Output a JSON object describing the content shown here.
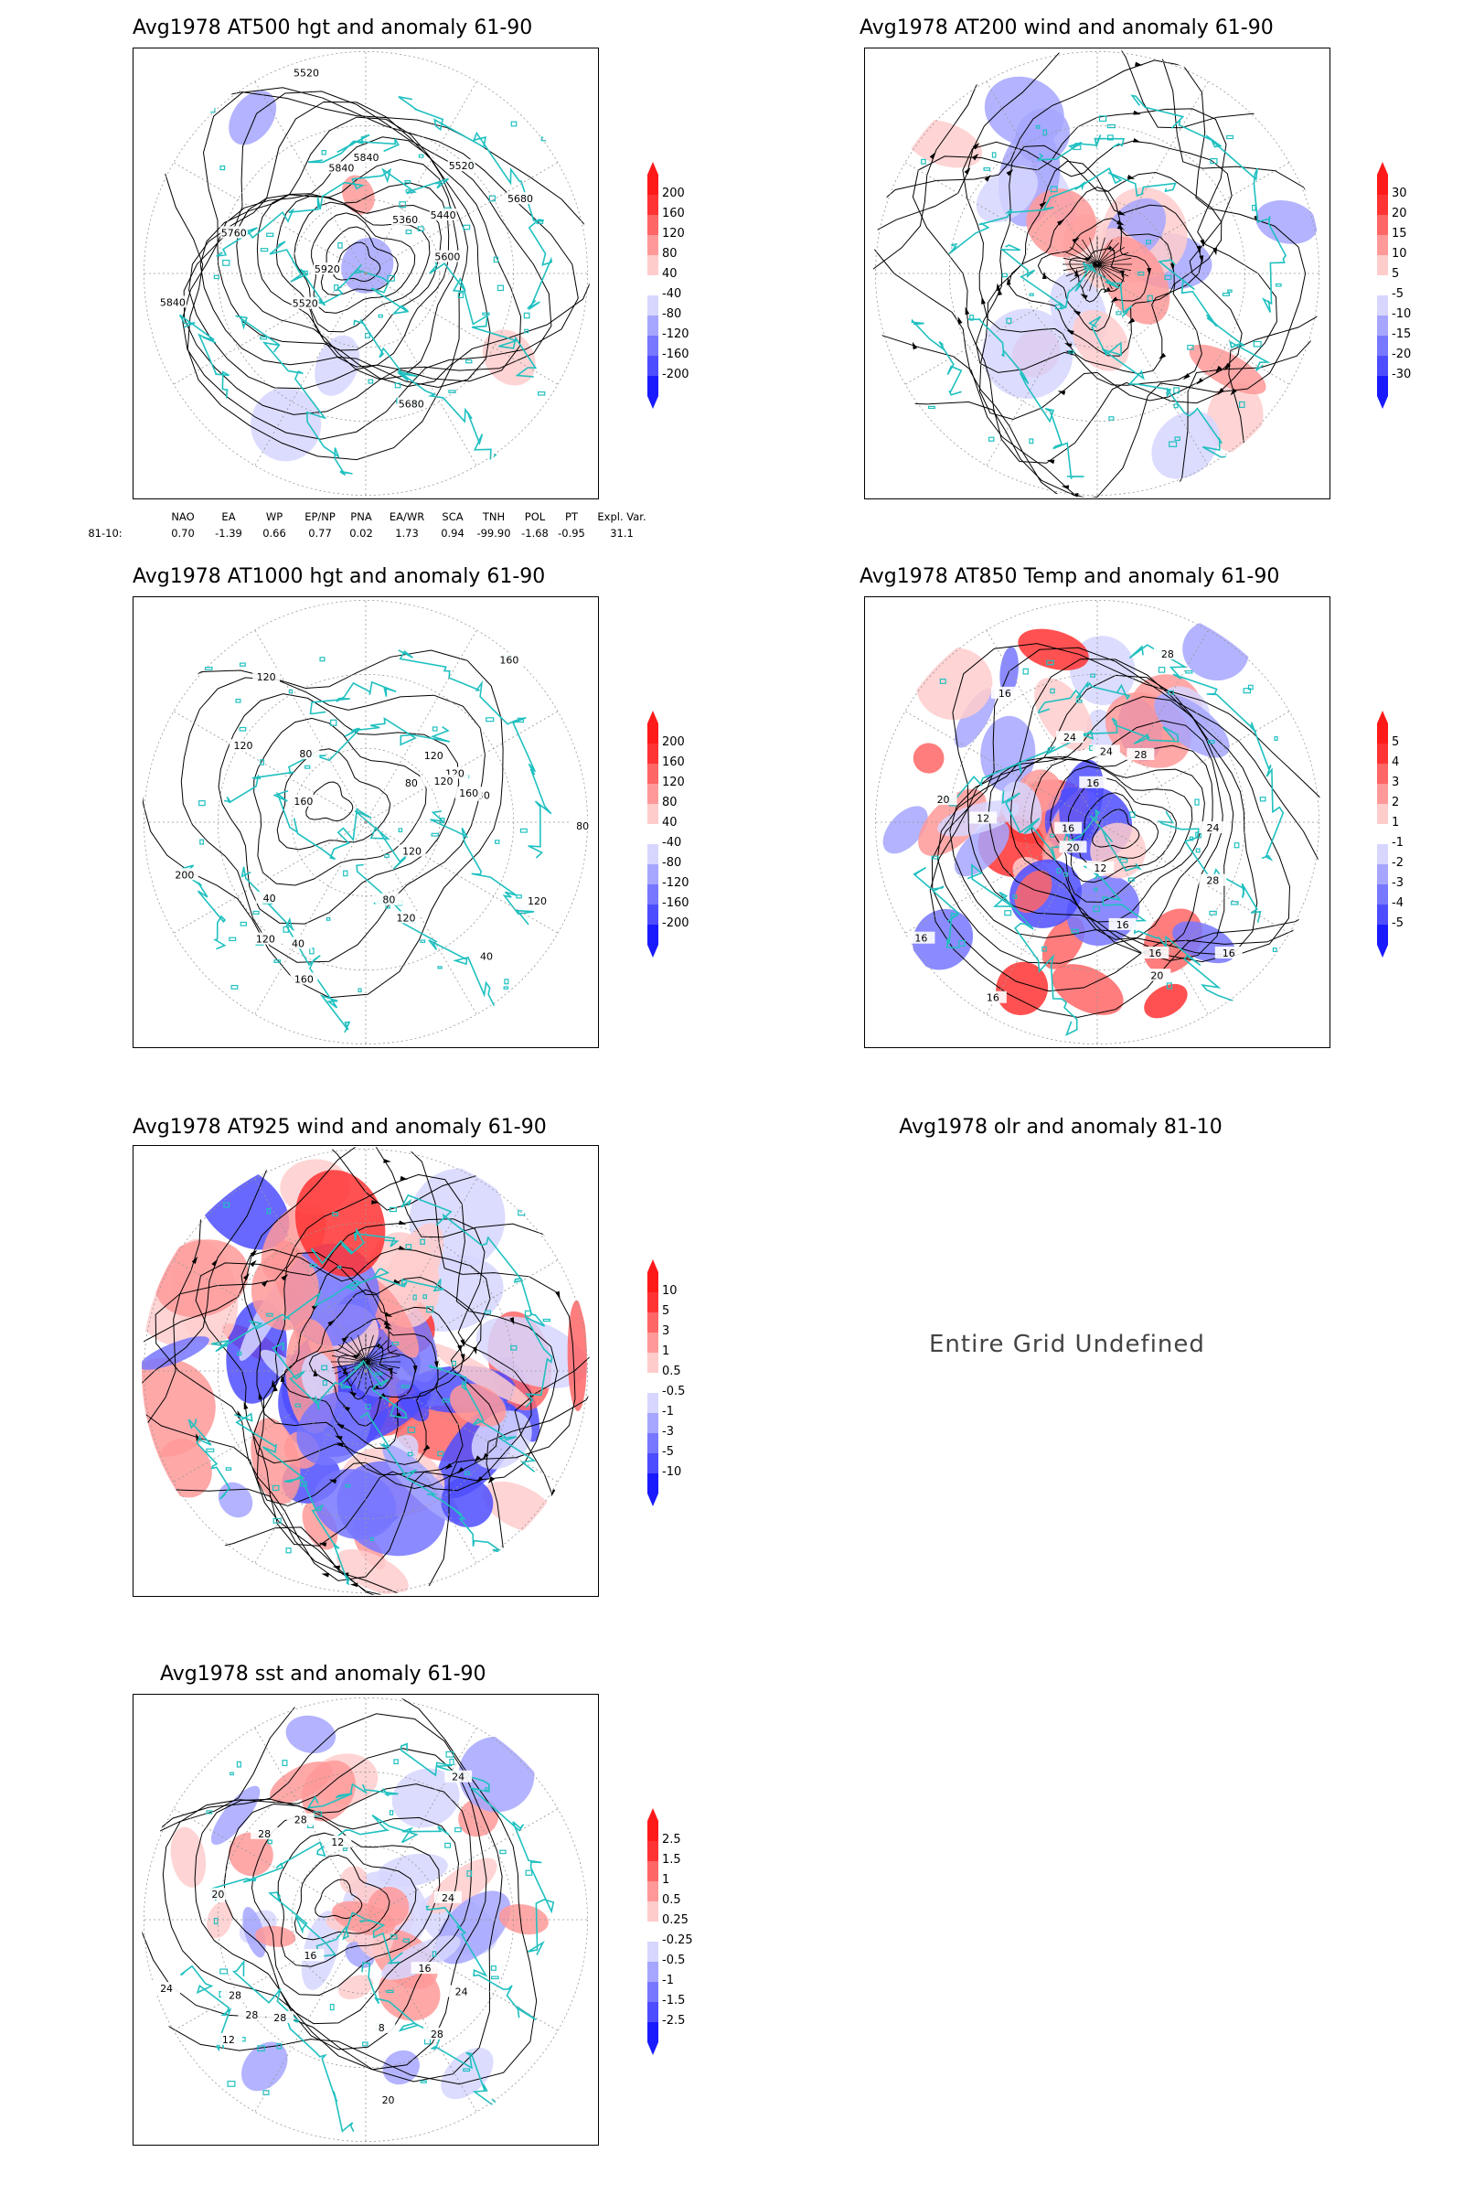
{
  "panels": [
    {
      "id": "p1",
      "title": "Avg1978 AT500 hgt and anomaly 61-90",
      "contour_labels": [
        "5680",
        "5520",
        "5360",
        "5440",
        "5520",
        "5520",
        "5600",
        "5680",
        "5760",
        "5840",
        "5920",
        "5840",
        "5840"
      ],
      "colorbar": {
        "labels": [
          "200",
          "160",
          "120",
          "80",
          "40",
          "-40",
          "-80",
          "-120",
          "-160",
          "-200"
        ]
      }
    },
    {
      "id": "p2",
      "title": "Avg1978 AT200 wind and anomaly 61-90",
      "colorbar": {
        "labels": [
          "30",
          "20",
          "15",
          "10",
          "5",
          "-5",
          "-10",
          "-15",
          "-20",
          "-30"
        ]
      }
    },
    {
      "id": "p3",
      "title": "Avg1978 AT1000 hgt and anomaly 61-90",
      "contour_labels": [
        "80",
        "160",
        "200",
        "120",
        "160",
        "120",
        "80",
        "40",
        "120",
        "80",
        "40",
        "120",
        "40",
        "160",
        "120",
        "80",
        "120",
        "120",
        "160",
        "80",
        "120",
        "120"
      ],
      "colorbar": {
        "labels": [
          "200",
          "160",
          "120",
          "80",
          "40",
          "-40",
          "-80",
          "-120",
          "-160",
          "-200"
        ]
      }
    },
    {
      "id": "p4",
      "title": "Avg1978 AT850 Temp and anomaly 61-90",
      "contour_labels": [
        "16",
        "16",
        "12",
        "24",
        "20",
        "16",
        "16",
        "20",
        "28",
        "24",
        "28",
        "16",
        "16",
        "12",
        "16",
        "20",
        "28",
        "24",
        "20",
        "16"
      ],
      "colorbar": {
        "labels": [
          "5",
          "4",
          "3",
          "2",
          "1",
          "-1",
          "-2",
          "-3",
          "-4",
          "-5"
        ]
      }
    },
    {
      "id": "p5",
      "title": "Avg1978 AT925 wind and anomaly 61-90",
      "colorbar": {
        "labels": [
          "10",
          "5",
          "3",
          "1",
          "0.5",
          "-0.5",
          "-1",
          "-3",
          "-5",
          "-10"
        ]
      }
    },
    {
      "id": "p6",
      "title": "Avg1978 olr and anomaly 81-10",
      "message": "Entire Grid Undefined"
    },
    {
      "id": "p7",
      "title": "Avg1978 sst and anomaly 61-90",
      "contour_labels": [
        "28",
        "28",
        "24",
        "20",
        "16",
        "12",
        "24",
        "28",
        "28",
        "8",
        "12",
        "16",
        "20",
        "28",
        "24",
        "24",
        "28"
      ],
      "colorbar": {
        "labels": [
          "2.5",
          "1.5",
          "1",
          "0.5",
          "0.25",
          "-0.25",
          "-0.5",
          "-1",
          "-1.5",
          "-2.5"
        ]
      }
    }
  ],
  "teleconnections": {
    "headers": [
      "NAO",
      "EA",
      "WP",
      "EP/NP",
      "PNA",
      "EA/WR",
      "SCA",
      "TNH",
      "POL",
      "PT",
      "Expl. Var."
    ],
    "row_label": "81-10:",
    "values": [
      "0.70",
      "-1.39",
      "0.66",
      "0.77",
      "0.02",
      "1.73",
      "0.94",
      "-99.90",
      "-1.68",
      "-0.95",
      "31.1"
    ]
  },
  "colors": {
    "coastline": "#20c0c0",
    "positive_scale": [
      "#ff1a1a",
      "#ff3333",
      "#ff6666",
      "#ff9999",
      "#ffcccc"
    ],
    "negative_scale": [
      "#d6d6ff",
      "#a6a6ff",
      "#7777ff",
      "#4d4dff",
      "#1a1aff"
    ],
    "contour": "#000000"
  }
}
